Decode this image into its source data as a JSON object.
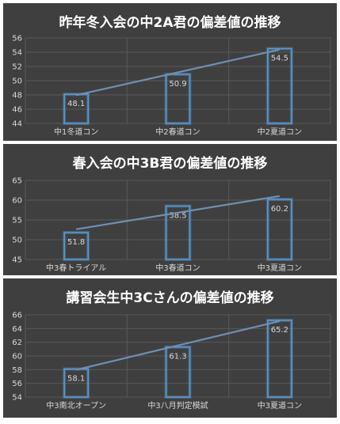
{
  "chart_data": [
    {
      "type": "bar",
      "title": "昨年冬入会の中2A君の偏差値の推移",
      "categories": [
        "中1冬道コン",
        "中2春道コン",
        "中2夏道コン"
      ],
      "values": [
        48.1,
        50.9,
        54.5
      ],
      "ylim": [
        44,
        56
      ],
      "yticks": [
        44,
        46,
        48,
        50,
        52,
        54,
        56
      ],
      "trendline": true,
      "grid": true
    },
    {
      "type": "bar",
      "title": "春入会の中3B君の偏差値の推移",
      "categories": [
        "中3春トライアル",
        "中3春道コン",
        "中3夏道コン"
      ],
      "values": [
        51.8,
        58.5,
        60.2
      ],
      "ylim": [
        45,
        65
      ],
      "yticks": [
        45,
        50,
        55,
        60,
        65
      ],
      "trendline": true,
      "grid": true
    },
    {
      "type": "bar",
      "title": "講習会生中3Cさんの偏差値の推移",
      "categories": [
        "中3南北オープン",
        "中3八月判定模試",
        "中3夏道コン"
      ],
      "values": [
        58.1,
        61.3,
        65.2
      ],
      "ylim": [
        54,
        66
      ],
      "yticks": [
        54,
        56,
        58,
        60,
        62,
        64,
        66
      ],
      "trendline": true,
      "grid": true
    }
  ],
  "colors": {
    "panel_bg": "#3f3f3f",
    "bar_outline": "#5b9bd5",
    "trend_line": "#6f8fb4",
    "grid": "#595959",
    "text": "#d9d9d9",
    "title": "#ffffff"
  }
}
